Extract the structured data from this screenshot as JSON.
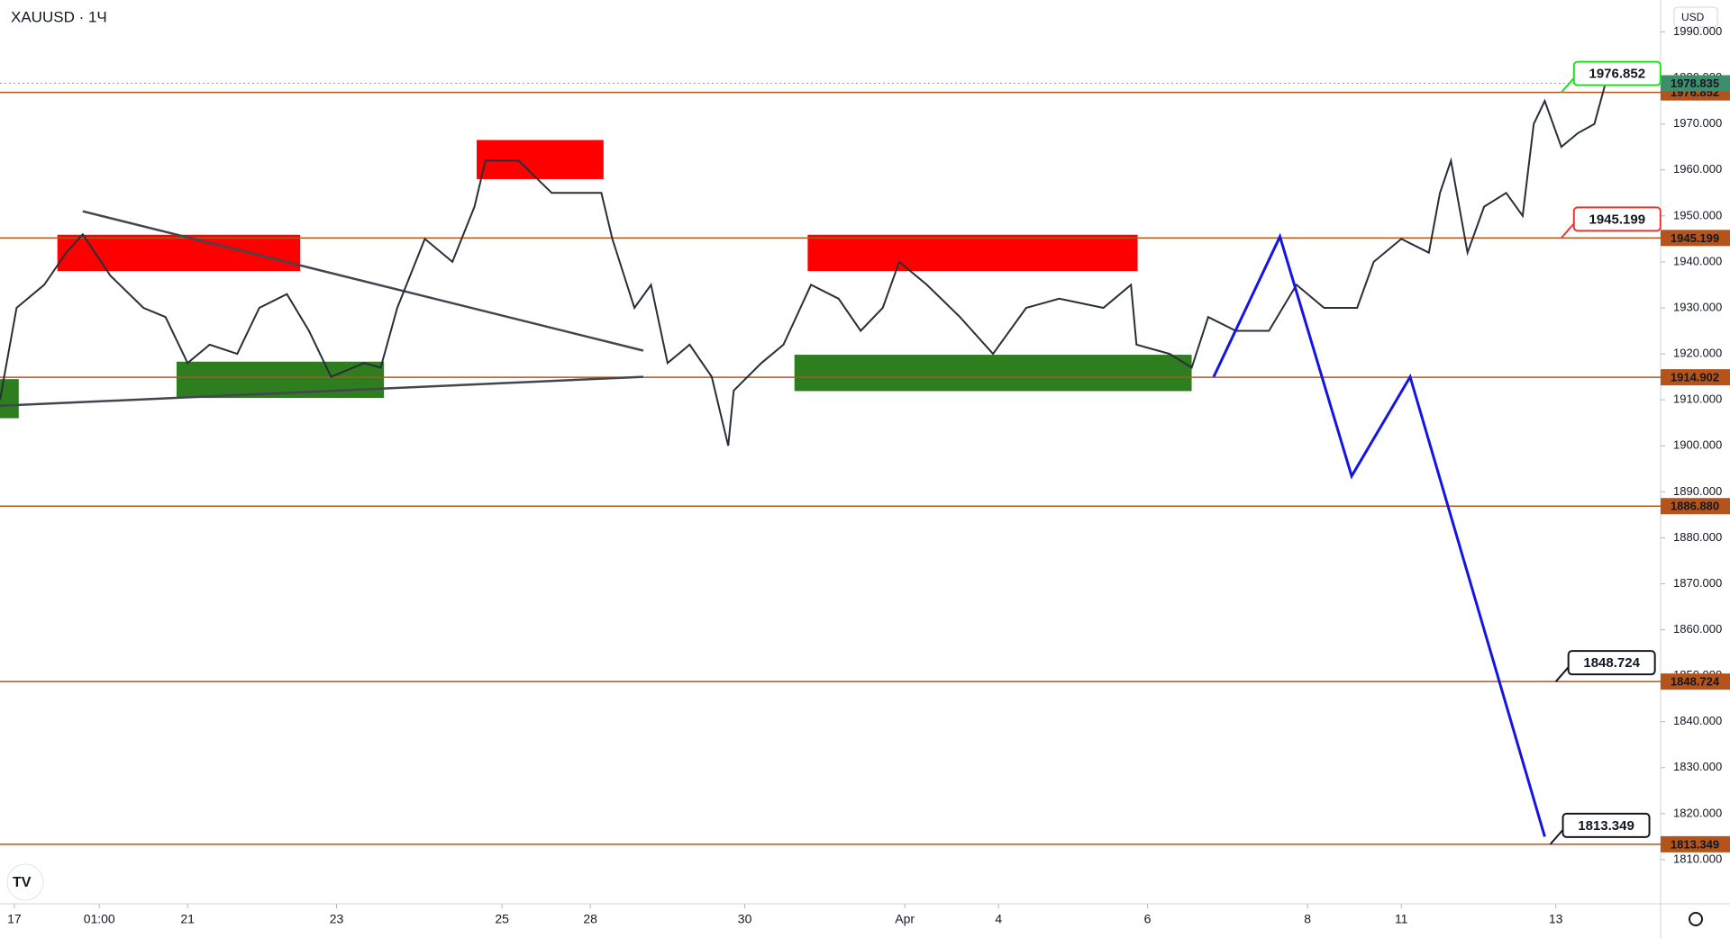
{
  "header": {
    "symbol": "XAUUSD · 1Ч",
    "currency": "USD"
  },
  "chart_data": {
    "type": "line",
    "x": [
      0,
      3,
      8,
      12,
      15,
      20,
      26,
      30,
      34,
      38,
      43,
      47,
      52,
      56,
      60,
      66,
      69,
      72,
      77,
      82,
      86,
      88,
      94,
      100,
      104,
      109,
      111,
      115,
      118,
      121,
      125,
      129,
      132,
      133,
      138,
      142,
      147,
      152,
      156,
      160,
      163,
      168,
      174,
      180,
      186,
      192,
      200,
      205,
      206,
      212,
      216,
      219,
      224,
      230,
      235,
      240,
      246,
      249,
      254,
      259,
      261,
      263,
      266,
      269,
      273,
      276,
      278,
      280,
      283,
      286,
      289,
      291
    ],
    "series": [
      {
        "name": "XAUUSD",
        "color": "#2a2e39",
        "values": [
          1910,
          1930,
          1935,
          1942,
          1946,
          1937,
          1930,
          1928,
          1918,
          1922,
          1920,
          1930,
          1933,
          1925,
          1915,
          1918,
          1917,
          1930,
          1945,
          1940,
          1952,
          1962,
          1962,
          1955,
          1955,
          1955,
          1945,
          1930,
          1935,
          1918,
          1922,
          1915,
          1900,
          1912,
          1918,
          1922,
          1935,
          1932,
          1925,
          1930,
          1940,
          1935,
          1928,
          1920,
          1930,
          1932,
          1930,
          1935,
          1922,
          1920,
          1917,
          1928,
          1925,
          1925,
          1935,
          1930,
          1930,
          1940,
          1945,
          1942,
          1955,
          1962,
          1942,
          1952,
          1955,
          1950,
          1970,
          1975,
          1965,
          1968,
          1970,
          1978.835
        ]
      }
    ],
    "xlim": [
      0,
      301
    ],
    "xticks": [
      {
        "value": 2.6,
        "label": "17"
      },
      {
        "value": 18,
        "label": "01:00"
      },
      {
        "value": 34,
        "label": "21"
      },
      {
        "value": 61,
        "label": "23"
      },
      {
        "value": 91,
        "label": "25"
      },
      {
        "value": 107,
        "label": "28"
      },
      {
        "value": 135,
        "label": "30"
      },
      {
        "value": 164,
        "label": "Apr"
      },
      {
        "value": 181,
        "label": "4"
      },
      {
        "value": 208,
        "label": "6"
      },
      {
        "value": 237,
        "label": "8"
      },
      {
        "value": 254,
        "label": "11"
      },
      {
        "value": 282,
        "label": "13"
      }
    ],
    "ylim": [
      1800.4,
      1996.95
    ],
    "yticks": [
      {
        "value": 1810,
        "label": "1810.000"
      },
      {
        "value": 1820,
        "label": "1820.000"
      },
      {
        "value": 1830,
        "label": "1830.000"
      },
      {
        "value": 1840,
        "label": "1840.000"
      },
      {
        "value": 1850,
        "label": "1850.000"
      },
      {
        "value": 1860,
        "label": "1860.000"
      },
      {
        "value": 1870,
        "label": "1870.000"
      },
      {
        "value": 1880,
        "label": "1880.000"
      },
      {
        "value": 1890,
        "label": "1890.000"
      },
      {
        "value": 1900,
        "label": "1900.000"
      },
      {
        "value": 1910,
        "label": "1910.000"
      },
      {
        "value": 1920,
        "label": "1920.000"
      },
      {
        "value": 1930,
        "label": "1930.000"
      },
      {
        "value": 1940,
        "label": "1940.000"
      },
      {
        "value": 1950,
        "label": "1950.000"
      },
      {
        "value": 1960,
        "label": "1960.000"
      },
      {
        "value": 1970,
        "label": "1970.000"
      },
      {
        "value": 1980,
        "label": "1980.000"
      },
      {
        "value": 1990,
        "label": "1990.000"
      }
    ],
    "last_price": {
      "value": 1978.835,
      "color": "#3d8f6b"
    },
    "levels": {
      "color": "#b5541a",
      "values": [
        1976.852,
        1945.199,
        1914.902,
        {
          "value": 1886.88,
          "label": "1886.880"
        },
        1848.724,
        1813.349
      ]
    },
    "callouts": [
      {
        "x": 283,
        "value": 1976.852,
        "color": "#22dd22"
      },
      {
        "x": 283,
        "value": 1945.199,
        "color": "#e53935"
      },
      {
        "x": 282,
        "value": 1848.724,
        "color": "#131722"
      },
      {
        "x": 281,
        "value": 1813.349,
        "color": "#131722"
      }
    ],
    "zones": [
      {
        "x": [
          10.4,
          54.4
        ],
        "y": [
          1938,
          1945.9
        ],
        "color": "#ff0000"
      },
      {
        "x": [
          86.4,
          109.4
        ],
        "y": [
          1958,
          1966.5
        ],
        "color": "#ff0000"
      },
      {
        "x": [
          146.4,
          206.2
        ],
        "y": [
          1938,
          1945.9
        ],
        "color": "#ff0000"
      },
      {
        "x": [
          32,
          69.6
        ],
        "y": [
          1910.4,
          1918.3
        ],
        "color": "#2e7d1f"
      },
      {
        "x": [
          144,
          216
        ],
        "y": [
          1911.9,
          1919.8
        ],
        "color": "#2e7d1f"
      },
      {
        "x": [
          0,
          3.4
        ],
        "y": [
          1906,
          1914.5
        ],
        "color": "#2e7d1f"
      }
    ],
    "trendlines": [
      {
        "x": [
          15,
          116.6
        ],
        "y": [
          1951,
          1920.7
        ]
      },
      {
        "x": [
          0,
          116.6
        ],
        "y": [
          1908.7,
          1915
        ]
      }
    ],
    "projection": {
      "color": "#1414e6",
      "x": [
        220,
        232,
        245,
        255.6,
        280
      ],
      "y": [
        1915,
        1945.5,
        1893.4,
        1915,
        1815
      ]
    }
  }
}
